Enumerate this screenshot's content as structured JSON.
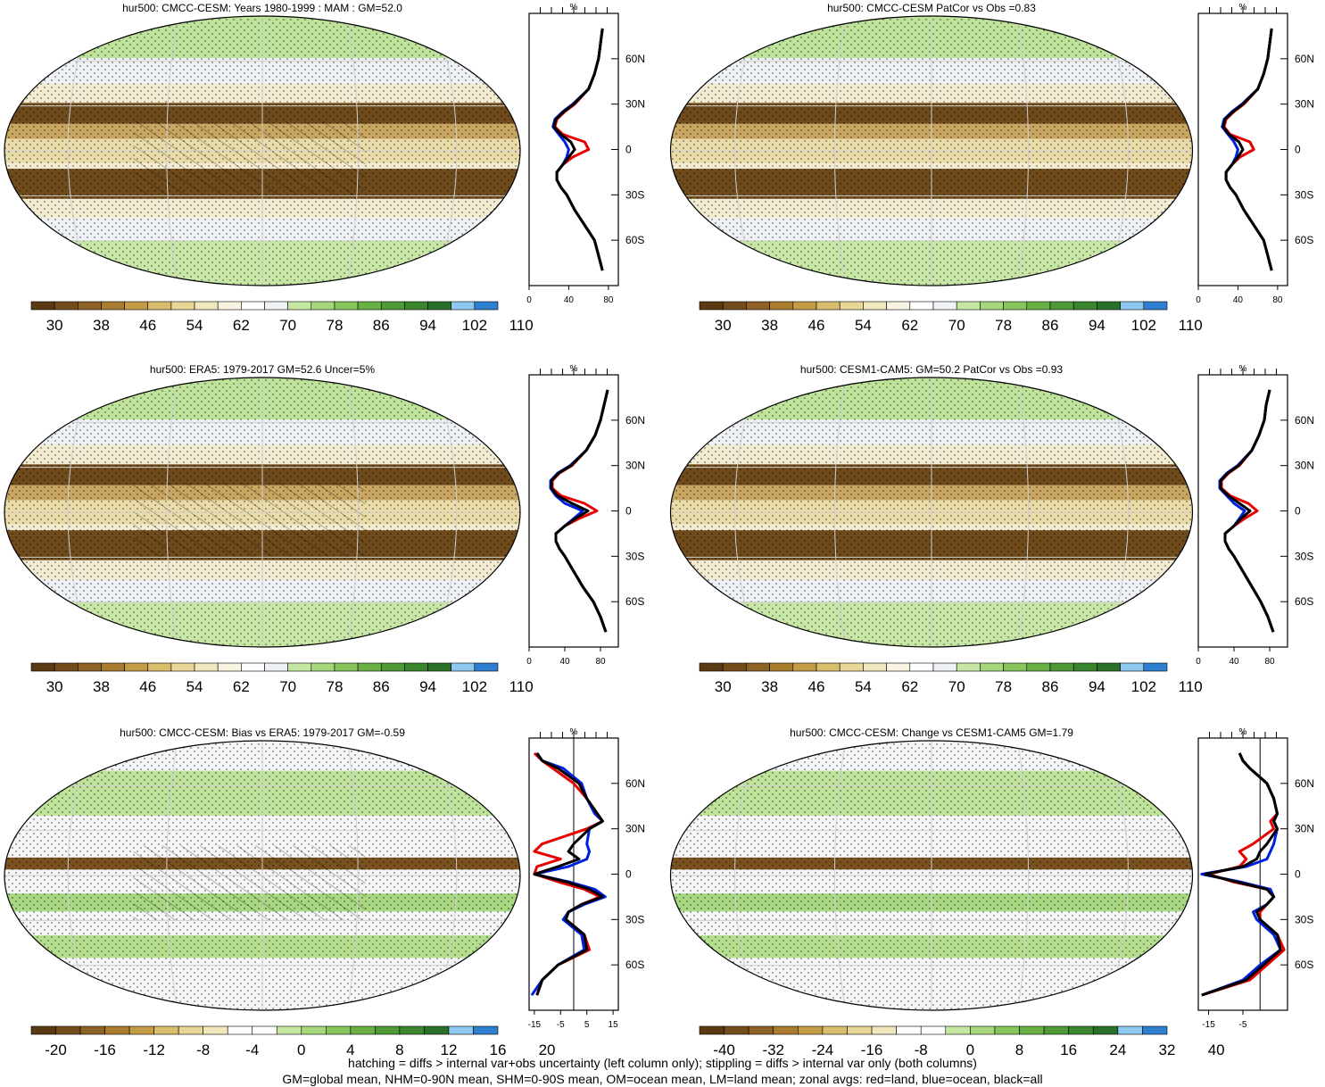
{
  "colors": {
    "abs_palette": [
      "#5a3a12",
      "#744c1c",
      "#8d6224",
      "#a97c2f",
      "#c49c45",
      "#d8bd6c",
      "#e7d696",
      "#f1e7bd",
      "#f9f4e2",
      "#ffffff",
      "#eef1f5",
      "#c5e7a2",
      "#a6d77a",
      "#86c55c",
      "#69b045",
      "#4f9a37",
      "#3b852e",
      "#2b7028",
      "#8fc8ee",
      "#2f7fd0"
    ],
    "diff_palette": [
      "#5a3a12",
      "#744c1c",
      "#8d6224",
      "#a97c2f",
      "#c49c45",
      "#d8bd6c",
      "#e7d696",
      "#f1e7bd",
      "#ffffff",
      "#ffffff",
      "#c5e7a2",
      "#a6d77a",
      "#86c55c",
      "#69b045",
      "#4f9a37",
      "#3b852e",
      "#2b7028",
      "#8fc8ee",
      "#2f7fd0"
    ],
    "land": "#e60000",
    "ocean": "#0020e0",
    "all": "#000000"
  },
  "rows": [
    {
      "map": {
        "title": "hur500: CMCC-CESM: Years 1980-1999 : MAM : GM=52.0",
        "colorbar": [
          "30",
          "38",
          "46",
          "54",
          "62",
          "70",
          "78",
          "86",
          "94",
          "102",
          "110"
        ]
      },
      "zonal": {
        "unit": "%",
        "xticks": [
          "0",
          "40",
          "80"
        ],
        "xlim": [
          0,
          90
        ],
        "zero_line": false,
        "lat_labels": [
          "60N",
          "30N",
          "0",
          "30S",
          "60S"
        ]
      },
      "map2": {
        "title": "hur500: CMCC-CESM PatCor vs Obs =0.83",
        "colorbar": [
          "30",
          "38",
          "46",
          "54",
          "62",
          "70",
          "78",
          "86",
          "94",
          "102",
          "110"
        ]
      },
      "zonal2": {
        "unit": "%",
        "xticks": [
          "0",
          "40",
          "80"
        ],
        "xlim": [
          0,
          90
        ],
        "zero_line": false,
        "lat_labels": [
          "60N",
          "30N",
          "0",
          "30S",
          "60S"
        ]
      }
    },
    {
      "map": {
        "title": "hur500: ERA5: 1979-2017 GM=52.6 Uncer=5%",
        "colorbar": [
          "30",
          "38",
          "46",
          "54",
          "62",
          "70",
          "78",
          "86",
          "94",
          "102",
          "110"
        ]
      },
      "zonal": {
        "unit": "%",
        "xticks": [
          "0",
          "40",
          "80"
        ],
        "xlim": [
          0,
          100
        ],
        "zero_line": false,
        "lat_labels": [
          "60N",
          "30N",
          "0",
          "30S",
          "60S"
        ]
      },
      "map2": {
        "title": "hur500: CESM1-CAM5: GM=50.2 PatCor vs Obs =0.93",
        "colorbar": [
          "30",
          "38",
          "46",
          "54",
          "62",
          "70",
          "78",
          "86",
          "94",
          "102",
          "110"
        ]
      },
      "zonal2": {
        "unit": "%",
        "xticks": [
          "0",
          "40",
          "80"
        ],
        "xlim": [
          0,
          100
        ],
        "zero_line": false,
        "lat_labels": [
          "60N",
          "30N",
          "0",
          "30S",
          "60S"
        ]
      }
    },
    {
      "map": {
        "title": "hur500: CMCC-CESM: Bias vs ERA5: 1979-2017 GM=-0.59",
        "colorbar": [
          "-20",
          "-16",
          "-12",
          "-8",
          "-4",
          "0",
          "4",
          "8",
          "12",
          "16",
          "20"
        ]
      },
      "zonal": {
        "unit": "%",
        "xticks": [
          "-15",
          "-5",
          "5",
          "15"
        ],
        "xlim": [
          -17,
          17
        ],
        "zero_line": true,
        "lat_labels": [
          "60N",
          "30N",
          "0",
          "30S",
          "60S"
        ]
      },
      "map2": {
        "title": "hur500: CMCC-CESM: Change vs CESM1-CAM5 GM=1.79",
        "colorbar": [
          "-40",
          "-32",
          "-24",
          "-16",
          "-8",
          "0",
          "8",
          "16",
          "24",
          "32",
          "40"
        ]
      },
      "zonal2": {
        "unit": "%",
        "xticks": [
          "-15",
          "-5"
        ],
        "xlim": [
          -18,
          8
        ],
        "zero_line": true,
        "lat_labels": [
          "60N",
          "30N",
          "0",
          "30S",
          "60S"
        ]
      }
    }
  ],
  "chart_data": [
    {
      "type": "line",
      "panel": "zonal mean row 1 left",
      "lat": [
        80,
        70,
        60,
        50,
        40,
        30,
        25,
        20,
        15,
        10,
        5,
        0,
        -5,
        -10,
        -15,
        -20,
        -25,
        -30,
        -40,
        -50,
        -60,
        -70,
        -80
      ],
      "series": [
        {
          "color": "red",
          "values": [
            74,
            72,
            70,
            66,
            60,
            46,
            36,
            28,
            26,
            34,
            56,
            60,
            44,
            34,
            28,
            28,
            32,
            38,
            46,
            56,
            66,
            70,
            74
          ]
        },
        {
          "color": "blue",
          "values": [
            74,
            72,
            70,
            66,
            60,
            44,
            34,
            26,
            24,
            30,
            36,
            40,
            38,
            34,
            28,
            28,
            32,
            38,
            46,
            56,
            66,
            70,
            74
          ]
        },
        {
          "color": "black",
          "values": [
            74,
            72,
            70,
            66,
            60,
            45,
            35,
            27,
            25,
            32,
            42,
            46,
            40,
            34,
            28,
            28,
            32,
            38,
            46,
            56,
            66,
            70,
            74
          ]
        }
      ]
    },
    {
      "type": "line",
      "panel": "zonal mean row 1 right",
      "lat": [
        80,
        70,
        60,
        50,
        40,
        30,
        25,
        20,
        15,
        10,
        5,
        0,
        -5,
        -10,
        -15,
        -20,
        -25,
        -30,
        -40,
        -50,
        -60,
        -70,
        -80
      ],
      "series": [
        {
          "color": "red",
          "values": [
            74,
            72,
            70,
            66,
            60,
            46,
            36,
            28,
            26,
            32,
            52,
            56,
            42,
            34,
            28,
            28,
            32,
            38,
            46,
            56,
            66,
            70,
            74
          ]
        },
        {
          "color": "blue",
          "values": [
            74,
            72,
            70,
            66,
            60,
            44,
            34,
            26,
            24,
            30,
            36,
            40,
            38,
            34,
            28,
            28,
            32,
            38,
            46,
            56,
            66,
            70,
            74
          ]
        },
        {
          "color": "black",
          "values": [
            74,
            72,
            70,
            66,
            60,
            45,
            35,
            27,
            25,
            31,
            41,
            45,
            40,
            34,
            28,
            28,
            32,
            38,
            46,
            56,
            66,
            70,
            74
          ]
        }
      ]
    },
    {
      "type": "line",
      "panel": "zonal mean row 2 left",
      "lat": [
        80,
        70,
        60,
        50,
        40,
        30,
        25,
        20,
        15,
        10,
        5,
        0,
        -5,
        -10,
        -15,
        -20,
        -25,
        -30,
        -40,
        -50,
        -60,
        -70,
        -80
      ],
      "series": [
        {
          "color": "red",
          "values": [
            88,
            84,
            80,
            74,
            64,
            48,
            34,
            26,
            26,
            36,
            62,
            76,
            56,
            40,
            30,
            30,
            34,
            40,
            50,
            60,
            72,
            80,
            86
          ]
        },
        {
          "color": "blue",
          "values": [
            88,
            84,
            80,
            74,
            64,
            46,
            32,
            24,
            24,
            30,
            40,
            60,
            50,
            40,
            30,
            30,
            34,
            40,
            50,
            60,
            72,
            80,
            86
          ]
        },
        {
          "color": "black",
          "values": [
            88,
            84,
            80,
            74,
            64,
            47,
            33,
            25,
            25,
            32,
            48,
            66,
            52,
            40,
            30,
            30,
            34,
            40,
            50,
            60,
            72,
            80,
            86
          ]
        }
      ]
    },
    {
      "type": "line",
      "panel": "zonal mean row 2 right",
      "lat": [
        80,
        70,
        60,
        50,
        40,
        30,
        25,
        20,
        15,
        10,
        5,
        0,
        -5,
        -10,
        -15,
        -20,
        -25,
        -30,
        -40,
        -50,
        -60,
        -70,
        -80
      ],
      "series": [
        {
          "color": "red",
          "values": [
            80,
            76,
            74,
            68,
            60,
            46,
            34,
            26,
            26,
            36,
            56,
            66,
            52,
            40,
            30,
            30,
            34,
            40,
            50,
            60,
            70,
            78,
            84
          ]
        },
        {
          "color": "blue",
          "values": [
            80,
            76,
            74,
            68,
            60,
            44,
            32,
            24,
            24,
            32,
            40,
            52,
            46,
            40,
            30,
            30,
            34,
            40,
            50,
            60,
            70,
            78,
            84
          ]
        },
        {
          "color": "black",
          "values": [
            80,
            76,
            74,
            68,
            60,
            45,
            33,
            25,
            25,
            34,
            46,
            58,
            48,
            40,
            30,
            30,
            34,
            40,
            50,
            60,
            70,
            78,
            84
          ]
        }
      ]
    },
    {
      "type": "line",
      "panel": "zonal mean row 3 left",
      "lat": [
        80,
        75,
        70,
        60,
        50,
        40,
        35,
        30,
        20,
        15,
        10,
        5,
        0,
        -5,
        -10,
        -15,
        -20,
        -25,
        -30,
        -40,
        -50,
        -60,
        -70,
        -80
      ],
      "series": [
        {
          "color": "red",
          "values": [
            -15,
            -12,
            -8,
            0,
            5,
            9,
            11,
            5,
            -12,
            -15,
            -5,
            -14,
            -15,
            -6,
            4,
            10,
            3,
            -2,
            -3,
            4,
            6,
            -6,
            -12,
            -14
          ]
        },
        {
          "color": "blue",
          "values": [
            -14,
            -12,
            -4,
            3,
            5,
            8,
            11,
            6,
            5,
            6,
            5,
            -2,
            -15,
            -2,
            8,
            12,
            4,
            -2,
            -4,
            3,
            4,
            -6,
            -12,
            -16
          ]
        },
        {
          "color": "black",
          "values": [
            -14,
            -12,
            -6,
            2,
            5,
            9,
            11,
            6,
            0,
            -2,
            2,
            -6,
            -15,
            -3,
            6,
            11,
            3,
            -2,
            -3,
            4,
            5,
            -6,
            -12,
            -14
          ]
        }
      ]
    },
    {
      "type": "line",
      "panel": "zonal mean row 3 right",
      "lat": [
        80,
        75,
        70,
        60,
        50,
        40,
        35,
        30,
        20,
        15,
        10,
        5,
        0,
        -5,
        -10,
        -15,
        -20,
        -25,
        -30,
        -40,
        -50,
        -60,
        -70,
        -80
      ],
      "series": [
        {
          "color": "red",
          "values": [
            -6,
            -5,
            -3,
            2,
            4,
            5,
            3,
            4,
            -2,
            -6,
            -4,
            -6,
            -15,
            -8,
            2,
            4,
            2,
            0,
            0,
            5,
            7,
            2,
            -3,
            -17
          ]
        },
        {
          "color": "blue",
          "values": [
            -6,
            -5,
            -3,
            2,
            4,
            5,
            4,
            5,
            4,
            3,
            2,
            -4,
            -17,
            -6,
            3,
            4,
            2,
            -2,
            -1,
            4,
            6,
            0,
            -5,
            -17
          ]
        },
        {
          "color": "black",
          "values": [
            -6,
            -5,
            -3,
            2,
            4,
            5,
            4,
            5,
            2,
            0,
            -1,
            -5,
            -16,
            -7,
            2,
            4,
            2,
            -1,
            0,
            5,
            6,
            1,
            -4,
            -17
          ]
        }
      ]
    }
  ],
  "footer": {
    "line1": "hatching = diffs > internal var+obs uncertainty (left column only); stippling = diffs > internal var only (both columns)",
    "line2": "GM=global mean, NHM=0-90N mean, SHM=0-90S mean, OM=ocean mean, LM=land mean; zonal avgs: red=land, blue=ocean, black=all"
  }
}
